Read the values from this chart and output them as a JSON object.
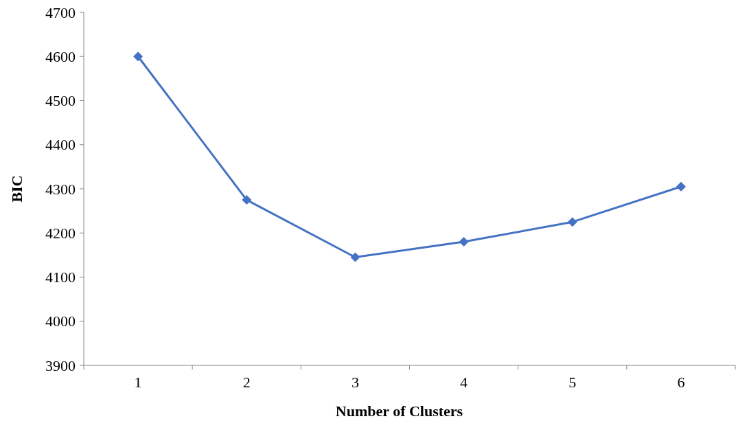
{
  "chart_data": {
    "type": "line",
    "xlabel": "Number of Clusters",
    "ylabel": "BIC",
    "categories": [
      "1",
      "2",
      "3",
      "4",
      "5",
      "6"
    ],
    "series": [
      {
        "color": "#4472c4",
        "values": [
          4600,
          4275,
          4145,
          4180,
          4225,
          4305
        ]
      }
    ],
    "ylim": [
      3900,
      4700
    ],
    "yticks": [
      3900,
      4000,
      4100,
      4200,
      4300,
      4400,
      4500,
      4600,
      4700
    ],
    "marker": "diamond",
    "grid": false
  }
}
